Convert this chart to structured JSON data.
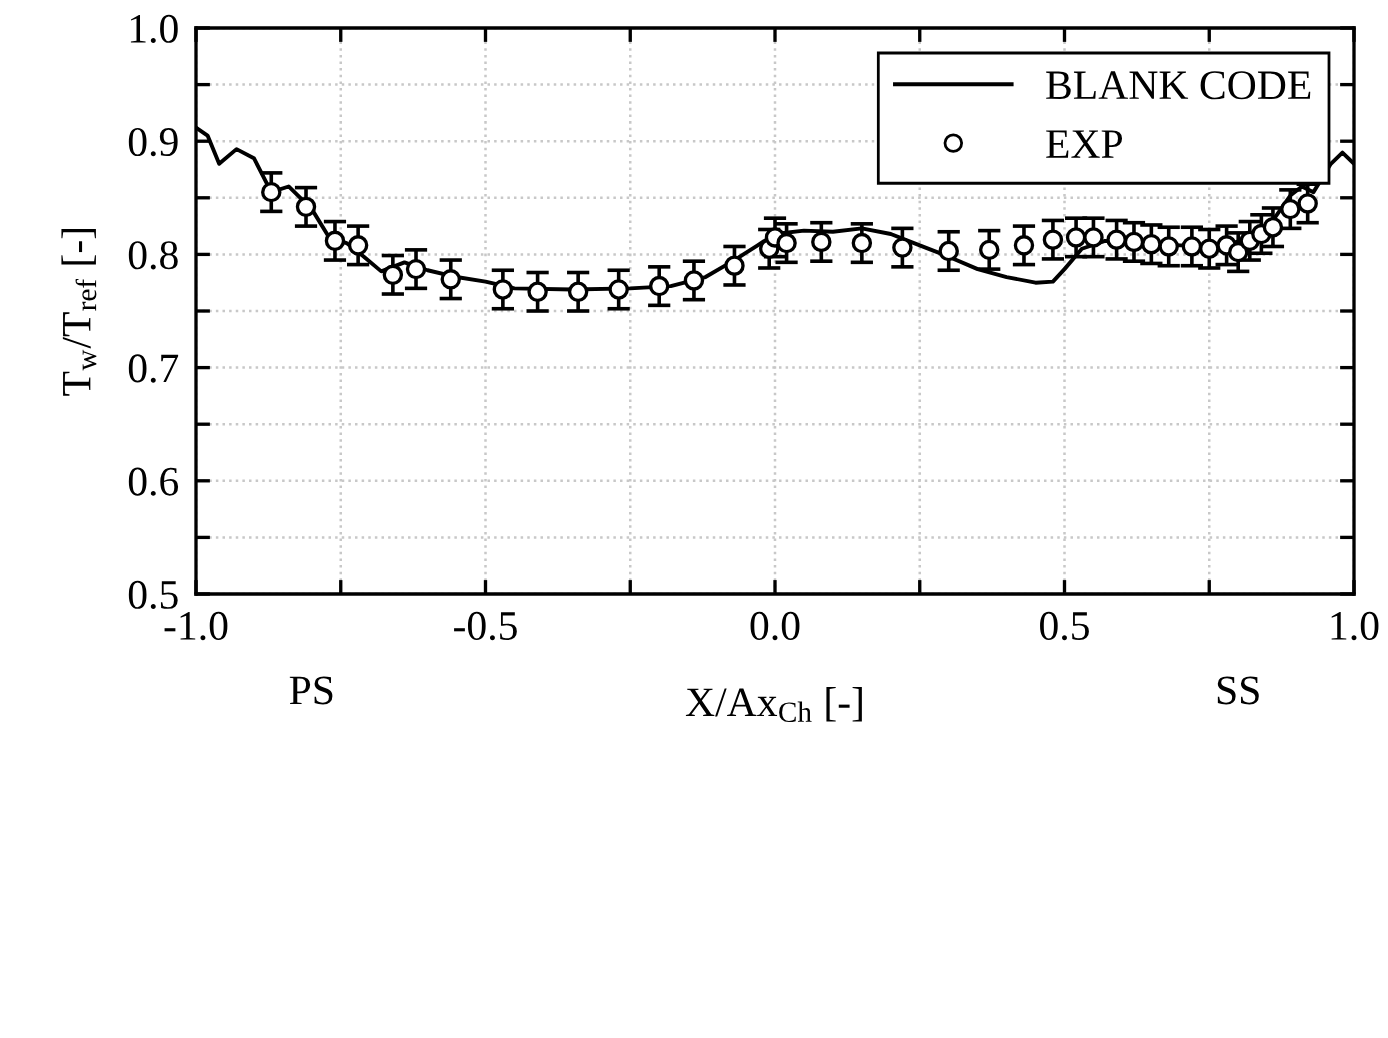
{
  "chart_data": {
    "type": "line",
    "xlabel": "X/Ax$_{Ch}$ [-]",
    "ylabel": "T$_{w}$/T$_{ref}$ [-]",
    "annotations": [
      "PS",
      "SS"
    ],
    "xlim": [
      -1.0,
      1.0
    ],
    "ylim": [
      0.5,
      1.0
    ],
    "xticks": [
      {
        "value": -1.0,
        "label": "-1.0"
      },
      {
        "value": -0.75,
        "label": null
      },
      {
        "value": -0.5,
        "label": "-0.5"
      },
      {
        "value": -0.25,
        "label": null
      },
      {
        "value": 0.0,
        "label": "0.0"
      },
      {
        "value": 0.25,
        "label": null
      },
      {
        "value": 0.5,
        "label": "0.5"
      },
      {
        "value": 0.75,
        "label": null
      },
      {
        "value": 1.0,
        "label": "1.0"
      }
    ],
    "yticks": [
      {
        "value": 0.5,
        "label": "0.5"
      },
      {
        "value": 0.55,
        "label": null
      },
      {
        "value": 0.6,
        "label": "0.6"
      },
      {
        "value": 0.65,
        "label": null
      },
      {
        "value": 0.7,
        "label": "0.7"
      },
      {
        "value": 0.75,
        "label": null
      },
      {
        "value": 0.8,
        "label": "0.8"
      },
      {
        "value": 0.85,
        "label": null
      },
      {
        "value": 0.9,
        "label": "0.9"
      },
      {
        "value": 0.95,
        "label": null
      },
      {
        "value": 1.0,
        "label": "1.0"
      }
    ],
    "grid": true,
    "legend": "top right",
    "series": [
      {
        "name": "BLANK CODE",
        "type": "line",
        "color": "#000000",
        "marker": "none",
        "line_style": "solid",
        "x": [
          -1.0,
          -0.98,
          -0.96,
          -0.93,
          -0.9,
          -0.87,
          -0.84,
          -0.8,
          -0.77,
          -0.74,
          -0.71,
          -0.68,
          -0.64,
          -0.6,
          -0.55,
          -0.5,
          -0.45,
          -0.35,
          -0.25,
          -0.18,
          -0.12,
          -0.07,
          -0.03,
          0.0,
          0.05,
          0.1,
          0.15,
          0.2,
          0.25,
          0.3,
          0.35,
          0.4,
          0.45,
          0.48,
          0.5,
          0.53,
          0.57,
          0.62,
          0.7,
          0.78,
          0.82,
          0.86,
          0.89,
          0.91,
          0.93,
          0.96,
          0.98,
          1.0
        ],
        "values": [
          0.912,
          0.905,
          0.88,
          0.893,
          0.885,
          0.855,
          0.86,
          0.84,
          0.815,
          0.81,
          0.798,
          0.785,
          0.793,
          0.786,
          0.78,
          0.776,
          0.77,
          0.769,
          0.77,
          0.772,
          0.78,
          0.795,
          0.808,
          0.818,
          0.821,
          0.82,
          0.823,
          0.818,
          0.808,
          0.798,
          0.787,
          0.78,
          0.775,
          0.776,
          0.787,
          0.805,
          0.812,
          0.81,
          0.808,
          0.808,
          0.815,
          0.83,
          0.852,
          0.86,
          0.855,
          0.88,
          0.89,
          0.88
        ]
      },
      {
        "name": "EXP",
        "type": "scatter",
        "color": "#000000",
        "marker": "circle",
        "x": [
          -0.87,
          -0.81,
          -0.76,
          -0.72,
          -0.66,
          -0.62,
          -0.56,
          -0.47,
          -0.41,
          -0.34,
          -0.27,
          -0.2,
          -0.14,
          -0.07,
          -0.01,
          0.0,
          0.02,
          0.08,
          0.15,
          0.22,
          0.3,
          0.37,
          0.43,
          0.48,
          0.52,
          0.55,
          0.59,
          0.62,
          0.65,
          0.68,
          0.72,
          0.75,
          0.78,
          0.8,
          0.82,
          0.84,
          0.86,
          0.89,
          0.92
        ],
        "values": [
          0.855,
          0.842,
          0.812,
          0.808,
          0.782,
          0.787,
          0.778,
          0.769,
          0.767,
          0.767,
          0.769,
          0.772,
          0.777,
          0.79,
          0.805,
          0.815,
          0.81,
          0.811,
          0.81,
          0.806,
          0.803,
          0.804,
          0.808,
          0.813,
          0.815,
          0.815,
          0.813,
          0.811,
          0.809,
          0.807,
          0.807,
          0.805,
          0.808,
          0.802,
          0.812,
          0.818,
          0.824,
          0.84,
          0.845
        ],
        "errors": [
          0.017,
          0.017,
          0.017,
          0.017,
          0.017,
          0.017,
          0.017,
          0.017,
          0.017,
          0.017,
          0.017,
          0.017,
          0.017,
          0.017,
          0.017,
          0.017,
          0.017,
          0.017,
          0.017,
          0.017,
          0.017,
          0.017,
          0.017,
          0.017,
          0.017,
          0.017,
          0.017,
          0.017,
          0.017,
          0.017,
          0.017,
          0.017,
          0.017,
          0.017,
          0.017,
          0.017,
          0.017,
          0.017,
          0.017
        ]
      }
    ]
  }
}
